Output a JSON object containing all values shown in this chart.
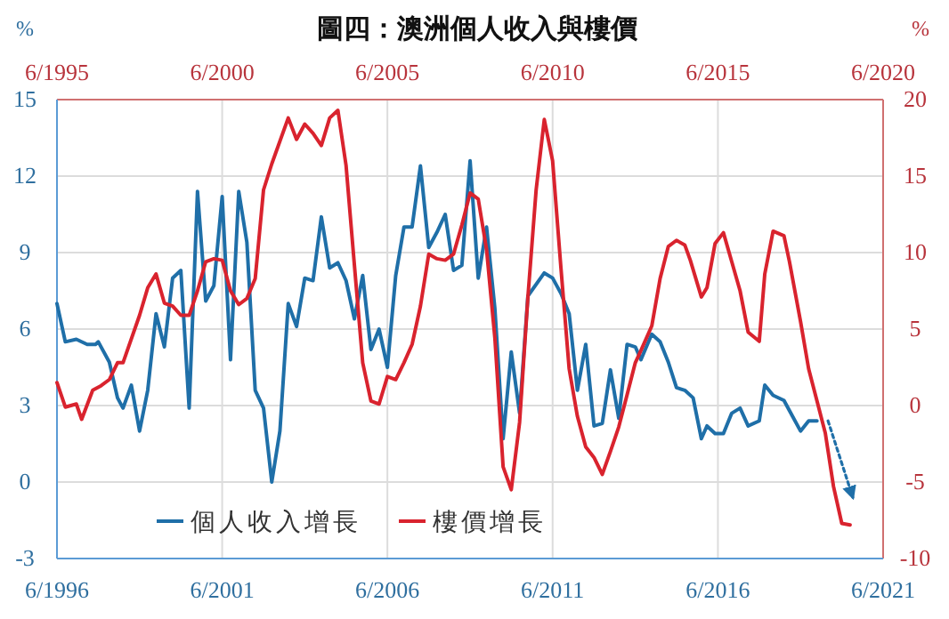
{
  "chart_data": {
    "type": "line",
    "title": "圖四：澳洲個人收入與樓價",
    "ylabel": "%",
    "y2label": "%",
    "xlim": [
      "1996-06",
      "2021-06"
    ],
    "xticks": [
      {
        "value": "1996-06",
        "label": "6/1996"
      },
      {
        "value": "2001-06",
        "label": "6/2001"
      },
      {
        "value": "2006-06",
        "label": "6/2006"
      },
      {
        "value": "2011-06",
        "label": "6/2011"
      },
      {
        "value": "2016-06",
        "label": "6/2016"
      },
      {
        "value": "2021-06",
        "label": "6/2021"
      }
    ],
    "x2lim": [
      "1995-06",
      "2020-06"
    ],
    "x2ticks": [
      {
        "value": "1995-06",
        "label": "6/1995"
      },
      {
        "value": "2000-06",
        "label": "6/2000"
      },
      {
        "value": "2005-06",
        "label": "6/2005"
      },
      {
        "value": "2010-06",
        "label": "6/2010"
      },
      {
        "value": "2015-06",
        "label": "6/2015"
      },
      {
        "value": "2020-06",
        "label": "6/2020"
      }
    ],
    "ylim": [
      -3,
      15
    ],
    "yticks": [
      -3,
      0,
      3,
      6,
      9,
      12,
      15
    ],
    "y2lim": [
      -10,
      20
    ],
    "y2ticks": [
      -10,
      -5,
      0,
      5,
      10,
      15,
      20
    ],
    "grid": true,
    "legend": "bottom left",
    "series": [
      {
        "name": "個人收入增長",
        "color": "#1f6fa8",
        "x": [
          "1996-06",
          "1996-09",
          "1997-01",
          "1997-05",
          "1997-08",
          "1997-09",
          "1998-01",
          "1998-04",
          "1998-06",
          "1998-09",
          "1998-12",
          "1999-03",
          "1999-06",
          "1999-09",
          "1999-12",
          "2000-03",
          "2000-06",
          "2000-09",
          "2000-12",
          "2001-03",
          "2001-06",
          "2001-09",
          "2001-12",
          "2002-03",
          "2002-06",
          "2002-09",
          "2002-12",
          "2003-03",
          "2003-06",
          "2003-09",
          "2003-12",
          "2004-03",
          "2004-06",
          "2004-09",
          "2004-12",
          "2005-03",
          "2005-06",
          "2005-09",
          "2005-12",
          "2006-03",
          "2006-06",
          "2006-09",
          "2006-12",
          "2007-03",
          "2007-06",
          "2007-09",
          "2007-12",
          "2008-03",
          "2008-06",
          "2008-09",
          "2008-12",
          "2009-03",
          "2009-06",
          "2009-09",
          "2009-12",
          "2010-03",
          "2010-06",
          "2010-09",
          "2011-03",
          "2011-06",
          "2011-09",
          "2011-12",
          "2012-03",
          "2012-06",
          "2012-09",
          "2012-12",
          "2013-03",
          "2013-06",
          "2013-09",
          "2013-12",
          "2014-02",
          "2014-06",
          "2014-09",
          "2014-12",
          "2015-03",
          "2015-06",
          "2015-09",
          "2015-12",
          "2016-02",
          "2016-05",
          "2016-08",
          "2016-11",
          "2017-02",
          "2017-05",
          "2017-09",
          "2017-11",
          "2018-02",
          "2018-06",
          "2018-08",
          "2018-12",
          "2019-03",
          "2019-06"
        ],
        "values": [
          7.0,
          5.5,
          5.6,
          5.4,
          5.4,
          5.5,
          4.7,
          3.3,
          2.9,
          3.8,
          2.0,
          3.6,
          6.6,
          5.3,
          8.0,
          8.3,
          2.9,
          11.4,
          7.1,
          7.7,
          11.2,
          4.8,
          11.4,
          9.4,
          3.6,
          2.9,
          0.0,
          2.0,
          7.0,
          6.1,
          8.0,
          7.9,
          10.4,
          8.4,
          8.6,
          7.9,
          6.4,
          8.1,
          5.2,
          6.0,
          4.5,
          8.1,
          10.0,
          10.0,
          12.4,
          9.2,
          9.8,
          10.5,
          8.3,
          8.5,
          12.6,
          8.0,
          10.0,
          6.8,
          1.7,
          5.1,
          2.7,
          7.3,
          8.2,
          8.0,
          7.4,
          6.6,
          3.6,
          5.4,
          2.2,
          2.3,
          4.4,
          2.5,
          5.4,
          5.3,
          4.8,
          5.8,
          5.5,
          4.7,
          3.7,
          3.6,
          3.3,
          1.7,
          2.2,
          1.9,
          1.9,
          2.7,
          2.9,
          2.2,
          2.4,
          3.8,
          3.4,
          3.2,
          2.8,
          2.0,
          2.4,
          2.4
        ]
      },
      {
        "name": "樓價增長",
        "color": "#d9232e",
        "axis": "y2",
        "x": [
          "1996-06",
          "1996-09",
          "1997-01",
          "1997-03",
          "1997-07",
          "1997-10",
          "1998-01",
          "1998-04",
          "1998-06",
          "1998-12",
          "1999-03",
          "1999-06",
          "1999-09",
          "1999-12",
          "2000-03",
          "2000-06",
          "2000-09",
          "2000-12",
          "2001-03",
          "2001-06",
          "2001-09",
          "2001-12",
          "2002-03",
          "2002-06",
          "2002-09",
          "2002-12",
          "2003-06",
          "2003-09",
          "2003-12",
          "2004-03",
          "2004-06",
          "2004-09",
          "2004-12",
          "2005-03",
          "2005-06",
          "2005-09",
          "2005-12",
          "2006-03",
          "2006-06",
          "2006-09",
          "2006-12",
          "2007-03",
          "2007-06",
          "2007-09",
          "2007-12",
          "2008-03",
          "2008-06",
          "2008-09",
          "2008-12",
          "2009-03",
          "2009-06",
          "2009-09",
          "2009-12",
          "2010-03",
          "2010-06",
          "2010-09",
          "2010-12",
          "2011-03",
          "2011-06",
          "2011-09",
          "2011-12",
          "2012-03",
          "2012-06",
          "2012-09",
          "2012-12",
          "2013-03",
          "2013-06",
          "2013-09",
          "2013-12",
          "2014-02",
          "2014-06",
          "2014-09",
          "2014-12",
          "2015-03",
          "2015-06",
          "2015-08",
          "2015-12",
          "2016-02",
          "2016-05",
          "2016-08",
          "2016-11",
          "2017-02",
          "2017-05",
          "2017-09",
          "2017-11",
          "2018-02",
          "2018-06",
          "2018-08",
          "2018-12",
          "2019-03",
          "2019-06",
          "2019-09",
          "2019-12",
          "2020-03",
          "2020-06"
        ],
        "values": [
          1.5,
          -0.1,
          0.1,
          -0.9,
          1.0,
          1.3,
          1.7,
          2.8,
          2.8,
          5.9,
          7.7,
          8.6,
          6.7,
          6.5,
          5.9,
          5.9,
          7.5,
          9.4,
          9.6,
          9.5,
          7.5,
          6.6,
          7.0,
          8.3,
          14.1,
          15.8,
          18.8,
          17.4,
          18.4,
          17.8,
          17.0,
          18.8,
          19.3,
          15.7,
          9.2,
          2.8,
          0.3,
          0.1,
          1.9,
          1.7,
          2.8,
          4.0,
          6.5,
          9.9,
          9.6,
          9.5,
          9.9,
          11.8,
          13.9,
          13.5,
          10.2,
          4.4,
          -4.0,
          -5.5,
          -1.1,
          7.1,
          14.1,
          18.7,
          16.0,
          9.0,
          2.4,
          -0.7,
          -2.7,
          -3.4,
          -4.5,
          -3.0,
          -1.4,
          0.7,
          2.8,
          3.6,
          5.2,
          8.3,
          10.4,
          10.8,
          10.5,
          9.5,
          7.1,
          7.7,
          10.6,
          11.3,
          9.4,
          7.5,
          4.8,
          4.2,
          8.6,
          11.4,
          11.1,
          9.4,
          5.5,
          2.4,
          0.3,
          -1.8,
          -5.3,
          -7.7,
          -7.8
        ]
      },
      {
        "color": "#1f6fa8",
        "line_style": "dotted",
        "x": [
          "2019-10",
          "2020-07"
        ],
        "values": [
          2.4,
          -0.6
        ]
      }
    ]
  }
}
